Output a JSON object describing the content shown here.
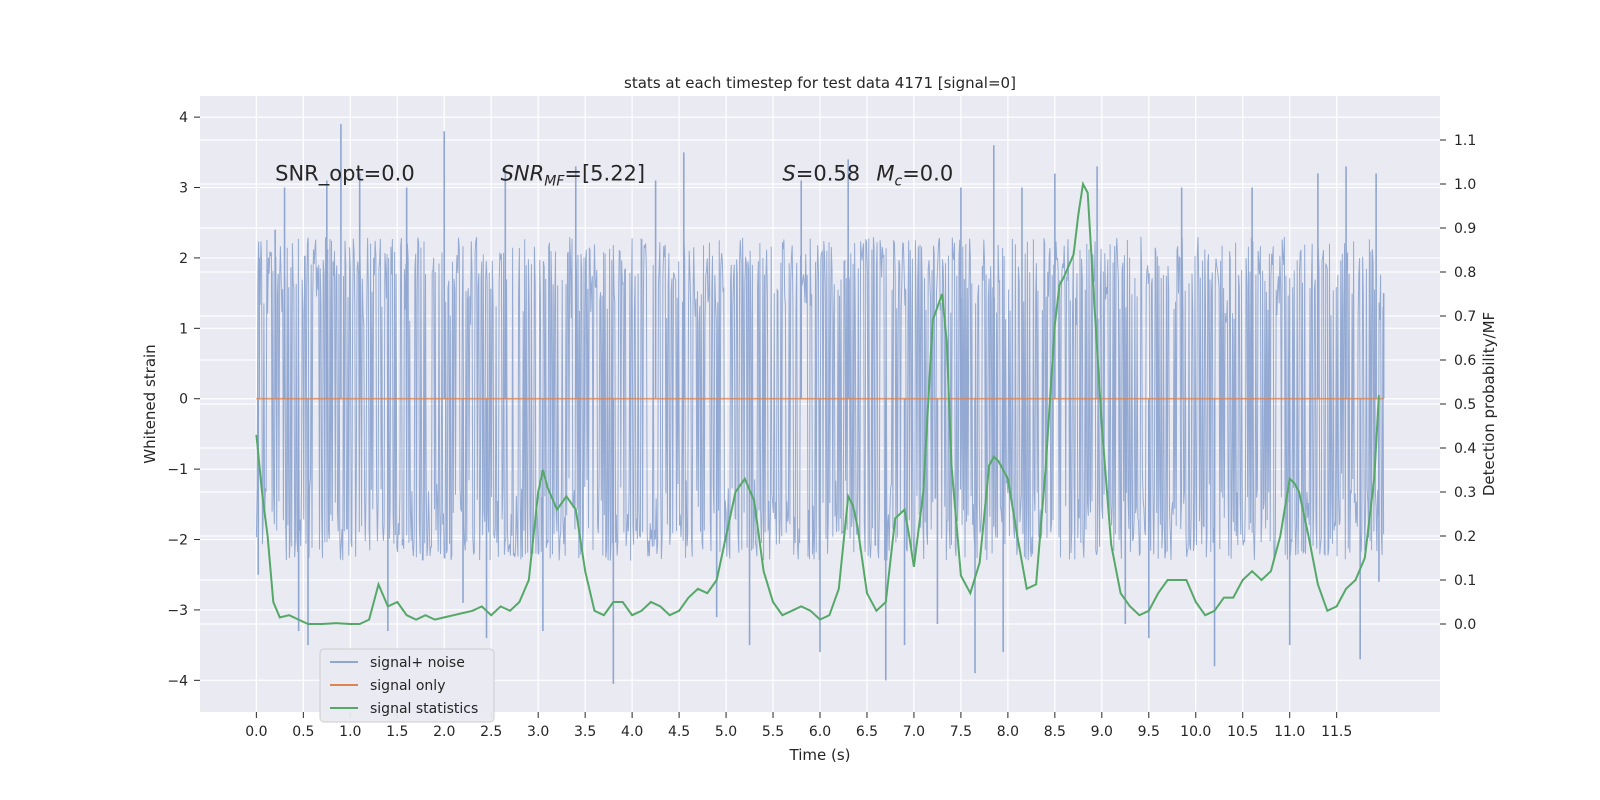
{
  "chart_data": {
    "type": "line",
    "title": "stats at each timestep for test data 4171 [signal=0]",
    "xlabel": "Time (s)",
    "ylabel": "Whitened strain",
    "y2label": "Detection probability/MF",
    "xlim": [
      -0.6,
      12.6
    ],
    "ylim": [
      -4.45,
      4.3
    ],
    "y2lim": [
      -0.2,
      1.2
    ],
    "x_ticks": [
      0.0,
      0.5,
      1.0,
      1.5,
      2.0,
      2.5,
      3.0,
      3.5,
      4.0,
      4.5,
      5.0,
      5.5,
      6.0,
      6.5,
      7.0,
      7.5,
      8.0,
      8.5,
      9.0,
      9.5,
      10.0,
      10.5,
      11.0,
      11.5
    ],
    "x_tick_labels": [
      "0.0",
      "0.5",
      "1.0",
      "1.5",
      "2.0",
      "2.5",
      "3.0",
      "3.5",
      "4.0",
      "4.5",
      "5.0",
      "5.5",
      "6.0",
      "6.5",
      "7.0",
      "7.5",
      "8.0",
      "8.5",
      "9.0",
      "9.5",
      "10.0",
      "10.5",
      "11.0",
      "11.5"
    ],
    "y_ticks": [
      4,
      3,
      2,
      1,
      0,
      -1,
      -2,
      -3,
      -4
    ],
    "y_tick_labels": [
      "4",
      "3",
      "2",
      "1",
      "0",
      "−1",
      "−2",
      "−3",
      "−4"
    ],
    "y2_ticks": [
      1.1,
      1.0,
      0.9,
      0.8,
      0.7,
      0.6,
      0.5,
      0.4,
      0.3,
      0.2,
      0.1,
      0.0
    ],
    "y2_tick_labels": [
      "1.1",
      "1.0",
      "0.9",
      "0.8",
      "0.7",
      "0.6",
      "0.5",
      "0.4",
      "0.3",
      "0.2",
      "0.1",
      "0.0"
    ],
    "annotations": [
      {
        "text": "SNR_opt=0.0",
        "x": 0.2,
        "y": 3.1
      },
      {
        "text": "SNR_MF=[5.22]",
        "x": 2.6,
        "y": 3.1
      },
      {
        "text": "S=0.58",
        "x": 5.6,
        "y": 3.1
      },
      {
        "text": "M_c=0.0",
        "x": 6.6,
        "y": 3.1
      }
    ],
    "legend": {
      "position": "lower-left",
      "entries": [
        {
          "label": "signal+ noise",
          "color": "#8fa6d1"
        },
        {
          "label": "signal only",
          "color": "#dd8452"
        },
        {
          "label": "signal statistics",
          "color": "#55a868"
        }
      ]
    },
    "series": [
      {
        "name": "signal+ noise",
        "axis": "left",
        "color": "#8fa6d1",
        "x_range": [
          0.0,
          12.0
        ],
        "approx_band": [
          -2.3,
          2.3
        ],
        "spikes": [
          {
            "x": 0.02,
            "y": -2.5
          },
          {
            "x": 0.03,
            "y": 2.0
          },
          {
            "x": 0.2,
            "y": 2.4
          },
          {
            "x": 0.3,
            "y": 3.0
          },
          {
            "x": 0.45,
            "y": -3.3
          },
          {
            "x": 0.55,
            "y": -3.5
          },
          {
            "x": 0.75,
            "y": 3.1
          },
          {
            "x": 0.9,
            "y": 3.9
          },
          {
            "x": 1.1,
            "y": 3.2
          },
          {
            "x": 1.4,
            "y": -3.3
          },
          {
            "x": 1.6,
            "y": 3.0
          },
          {
            "x": 2.0,
            "y": 3.8
          },
          {
            "x": 2.2,
            "y": -2.9
          },
          {
            "x": 2.45,
            "y": -3.4
          },
          {
            "x": 2.65,
            "y": 3.3
          },
          {
            "x": 3.05,
            "y": -3.3
          },
          {
            "x": 3.4,
            "y": 3.3
          },
          {
            "x": 3.8,
            "y": -4.05
          },
          {
            "x": 4.25,
            "y": 3.1
          },
          {
            "x": 4.55,
            "y": 3.5
          },
          {
            "x": 4.9,
            "y": -3.1
          },
          {
            "x": 5.25,
            "y": -3.5
          },
          {
            "x": 5.8,
            "y": 3.1
          },
          {
            "x": 6.0,
            "y": -3.6
          },
          {
            "x": 6.3,
            "y": 3.4
          },
          {
            "x": 6.7,
            "y": -4.0
          },
          {
            "x": 6.9,
            "y": -3.5
          },
          {
            "x": 7.25,
            "y": -3.2
          },
          {
            "x": 7.5,
            "y": 3.0
          },
          {
            "x": 7.65,
            "y": -3.9
          },
          {
            "x": 7.85,
            "y": 3.6
          },
          {
            "x": 7.95,
            "y": -3.6
          },
          {
            "x": 8.15,
            "y": 3.0
          },
          {
            "x": 8.5,
            "y": 3.2
          },
          {
            "x": 8.95,
            "y": 3.3
          },
          {
            "x": 9.25,
            "y": -3.2
          },
          {
            "x": 9.5,
            "y": -3.4
          },
          {
            "x": 9.85,
            "y": 3.0
          },
          {
            "x": 10.2,
            "y": -3.8
          },
          {
            "x": 10.6,
            "y": 3.0
          },
          {
            "x": 11.0,
            "y": -3.5
          },
          {
            "x": 11.3,
            "y": 3.2
          },
          {
            "x": 11.6,
            "y": 3.3
          },
          {
            "x": 11.75,
            "y": -3.7
          },
          {
            "x": 11.92,
            "y": 3.2
          },
          {
            "x": 11.95,
            "y": -2.6
          },
          {
            "x": 12.0,
            "y": 1.5
          }
        ]
      },
      {
        "name": "signal only",
        "axis": "left",
        "color": "#dd8452",
        "x": [
          0.0,
          12.0
        ],
        "y": [
          0.0,
          0.0
        ]
      },
      {
        "name": "signal statistics",
        "axis": "right",
        "color": "#55a868",
        "x": [
          0.0,
          0.06,
          0.12,
          0.18,
          0.25,
          0.35,
          0.45,
          0.55,
          0.7,
          0.85,
          1.0,
          1.1,
          1.2,
          1.3,
          1.4,
          1.5,
          1.6,
          1.7,
          1.8,
          1.9,
          2.0,
          2.1,
          2.2,
          2.3,
          2.4,
          2.5,
          2.6,
          2.7,
          2.8,
          2.9,
          3.0,
          3.05,
          3.1,
          3.2,
          3.3,
          3.4,
          3.5,
          3.6,
          3.7,
          3.8,
          3.9,
          4.0,
          4.1,
          4.2,
          4.3,
          4.4,
          4.5,
          4.6,
          4.7,
          4.8,
          4.9,
          5.0,
          5.1,
          5.2,
          5.3,
          5.4,
          5.5,
          5.6,
          5.7,
          5.8,
          5.9,
          6.0,
          6.1,
          6.2,
          6.3,
          6.35,
          6.4,
          6.5,
          6.6,
          6.7,
          6.8,
          6.9,
          6.95,
          7.0,
          7.1,
          7.2,
          7.3,
          7.35,
          7.4,
          7.5,
          7.6,
          7.7,
          7.8,
          7.85,
          7.9,
          8.0,
          8.1,
          8.2,
          8.3,
          8.4,
          8.5,
          8.55,
          8.6,
          8.7,
          8.75,
          8.8,
          8.85,
          8.9,
          9.0,
          9.1,
          9.2,
          9.3,
          9.4,
          9.5,
          9.6,
          9.7,
          9.8,
          9.9,
          10.0,
          10.1,
          10.2,
          10.3,
          10.4,
          10.5,
          10.6,
          10.7,
          10.8,
          10.9,
          11.0,
          11.05,
          11.1,
          11.2,
          11.3,
          11.4,
          11.5,
          11.6,
          11.7,
          11.8,
          11.9,
          11.95
        ],
        "y": [
          0.43,
          0.3,
          0.2,
          0.05,
          0.015,
          0.02,
          0.01,
          0.0,
          0.0,
          0.002,
          0.0,
          0.0,
          0.01,
          0.09,
          0.04,
          0.05,
          0.02,
          0.01,
          0.02,
          0.01,
          0.015,
          0.02,
          0.025,
          0.03,
          0.04,
          0.02,
          0.04,
          0.03,
          0.05,
          0.1,
          0.3,
          0.35,
          0.31,
          0.26,
          0.29,
          0.26,
          0.12,
          0.03,
          0.02,
          0.05,
          0.05,
          0.02,
          0.03,
          0.05,
          0.04,
          0.02,
          0.03,
          0.06,
          0.08,
          0.07,
          0.1,
          0.2,
          0.3,
          0.33,
          0.28,
          0.12,
          0.05,
          0.02,
          0.03,
          0.04,
          0.03,
          0.01,
          0.02,
          0.08,
          0.29,
          0.27,
          0.22,
          0.07,
          0.03,
          0.05,
          0.24,
          0.26,
          0.2,
          0.13,
          0.3,
          0.69,
          0.75,
          0.64,
          0.36,
          0.11,
          0.07,
          0.14,
          0.36,
          0.38,
          0.37,
          0.33,
          0.2,
          0.08,
          0.09,
          0.35,
          0.68,
          0.77,
          0.79,
          0.84,
          0.93,
          1.0,
          0.98,
          0.8,
          0.45,
          0.18,
          0.07,
          0.04,
          0.02,
          0.03,
          0.07,
          0.1,
          0.1,
          0.1,
          0.05,
          0.02,
          0.03,
          0.06,
          0.06,
          0.1,
          0.12,
          0.1,
          0.12,
          0.2,
          0.33,
          0.32,
          0.3,
          0.2,
          0.09,
          0.03,
          0.04,
          0.08,
          0.1,
          0.15,
          0.33,
          0.52
        ]
      }
    ]
  }
}
